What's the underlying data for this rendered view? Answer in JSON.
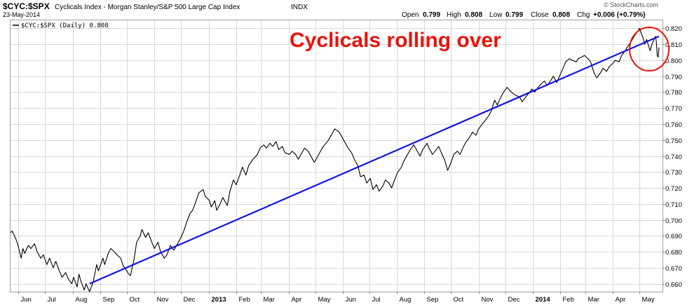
{
  "header": {
    "symbol": "$CYC:$SPX",
    "name": "Cyclicals Index - Morgan Stanley/S&P 500 Large Cap Index",
    "exchange": "INDX",
    "date": "23-May-2014",
    "open_label": "Open",
    "open": "0.799",
    "high_label": "High",
    "high": "0.808",
    "low_label": "Low",
    "low": "0.799",
    "close_label": "Close",
    "close": "0.808",
    "chg_label": "Chg",
    "chg": "+0.006 (+0.79%)"
  },
  "legend": {
    "label": "$CYC:$SPX (Daily) 0.808"
  },
  "annotation": "Cyclicals rolling over",
  "credit": "© StockCharts.com",
  "colors": {
    "price_line": "#000000",
    "trend_line": "#1414e6",
    "annotation": "#e8150c",
    "grid": "#d8d8d8"
  },
  "chart_data": {
    "type": "line",
    "title": "$CYC:$SPX",
    "xlabel": "",
    "ylabel": "",
    "ylim": [
      0.655,
      0.825
    ],
    "grid": true,
    "y_axis_side": "right",
    "yticks": [
      0.66,
      0.67,
      0.68,
      0.69,
      0.7,
      0.71,
      0.72,
      0.73,
      0.74,
      0.75,
      0.76,
      0.77,
      0.78,
      0.79,
      0.8,
      0.81,
      0.82
    ],
    "xticks": [
      {
        "label": "Jun",
        "date": "2012-06-01",
        "major": false
      },
      {
        "label": "Jul",
        "date": "2012-07-01",
        "major": false
      },
      {
        "label": "Aug",
        "date": "2012-08-01",
        "major": false
      },
      {
        "label": "Sep",
        "date": "2012-09-01",
        "major": false
      },
      {
        "label": "Oct",
        "date": "2012-10-01",
        "major": false
      },
      {
        "label": "Nov",
        "date": "2012-11-01",
        "major": false
      },
      {
        "label": "Dec",
        "date": "2012-12-01",
        "major": false
      },
      {
        "label": "2013",
        "date": "2013-01-01",
        "major": true
      },
      {
        "label": "Feb",
        "date": "2013-02-01",
        "major": false
      },
      {
        "label": "Mar",
        "date": "2013-03-01",
        "major": false
      },
      {
        "label": "Apr",
        "date": "2013-04-01",
        "major": false
      },
      {
        "label": "May",
        "date": "2013-05-01",
        "major": false
      },
      {
        "label": "Jun",
        "date": "2013-06-01",
        "major": false
      },
      {
        "label": "Jul",
        "date": "2013-07-01",
        "major": false
      },
      {
        "label": "Aug",
        "date": "2013-08-01",
        "major": false
      },
      {
        "label": "Sep",
        "date": "2013-09-01",
        "major": false
      },
      {
        "label": "Oct",
        "date": "2013-10-01",
        "major": false
      },
      {
        "label": "Nov",
        "date": "2013-11-01",
        "major": false
      },
      {
        "label": "Dec",
        "date": "2013-12-01",
        "major": false
      },
      {
        "label": "2014",
        "date": "2014-01-01",
        "major": true
      },
      {
        "label": "Feb",
        "date": "2014-02-01",
        "major": false
      },
      {
        "label": "Mar",
        "date": "2014-03-01",
        "major": false
      },
      {
        "label": "Apr",
        "date": "2014-04-01",
        "major": false
      },
      {
        "label": "May",
        "date": "2014-05-01",
        "major": false
      }
    ],
    "series": [
      {
        "name": "$CYC:$SPX (Daily)",
        "points": [
          [
            "2012-05-23",
            0.692
          ],
          [
            "2012-05-25",
            0.693
          ],
          [
            "2012-05-29",
            0.688
          ],
          [
            "2012-05-31",
            0.685
          ],
          [
            "2012-06-04",
            0.676
          ],
          [
            "2012-06-06",
            0.682
          ],
          [
            "2012-06-08",
            0.679
          ],
          [
            "2012-06-12",
            0.684
          ],
          [
            "2012-06-15",
            0.682
          ],
          [
            "2012-06-19",
            0.685
          ],
          [
            "2012-06-22",
            0.68
          ],
          [
            "2012-06-26",
            0.676
          ],
          [
            "2012-06-29",
            0.678
          ],
          [
            "2012-07-03",
            0.672
          ],
          [
            "2012-07-06",
            0.676
          ],
          [
            "2012-07-10",
            0.67
          ],
          [
            "2012-07-13",
            0.674
          ],
          [
            "2012-07-17",
            0.668
          ],
          [
            "2012-07-20",
            0.664
          ],
          [
            "2012-07-24",
            0.667
          ],
          [
            "2012-07-27",
            0.663
          ],
          [
            "2012-07-31",
            0.66
          ],
          [
            "2012-08-02",
            0.664
          ],
          [
            "2012-08-06",
            0.658
          ],
          [
            "2012-08-08",
            0.666
          ],
          [
            "2012-08-10",
            0.662
          ],
          [
            "2012-08-14",
            0.656
          ],
          [
            "2012-08-16",
            0.66
          ],
          [
            "2012-08-20",
            0.655
          ],
          [
            "2012-08-22",
            0.658
          ],
          [
            "2012-08-24",
            0.661
          ],
          [
            "2012-08-28",
            0.672
          ],
          [
            "2012-08-30",
            0.668
          ],
          [
            "2012-09-04",
            0.676
          ],
          [
            "2012-09-06",
            0.672
          ],
          [
            "2012-09-10",
            0.679
          ],
          [
            "2012-09-13",
            0.682
          ],
          [
            "2012-09-17",
            0.68
          ],
          [
            "2012-09-20",
            0.678
          ],
          [
            "2012-09-24",
            0.676
          ],
          [
            "2012-09-27",
            0.671
          ],
          [
            "2012-10-01",
            0.668
          ],
          [
            "2012-10-03",
            0.666
          ],
          [
            "2012-10-05",
            0.665
          ],
          [
            "2012-10-09",
            0.675
          ],
          [
            "2012-10-12",
            0.686
          ],
          [
            "2012-10-16",
            0.69
          ],
          [
            "2012-10-18",
            0.694
          ],
          [
            "2012-10-22",
            0.689
          ],
          [
            "2012-10-25",
            0.692
          ],
          [
            "2012-10-29",
            0.686
          ],
          [
            "2012-11-01",
            0.682
          ],
          [
            "2012-11-05",
            0.686
          ],
          [
            "2012-11-08",
            0.68
          ],
          [
            "2012-11-12",
            0.676
          ],
          [
            "2012-11-15",
            0.678
          ],
          [
            "2012-11-19",
            0.684
          ],
          [
            "2012-11-23",
            0.681
          ],
          [
            "2012-11-27",
            0.685
          ],
          [
            "2012-11-30",
            0.688
          ],
          [
            "2012-12-04",
            0.693
          ],
          [
            "2012-12-07",
            0.698
          ],
          [
            "2012-12-11",
            0.704
          ],
          [
            "2012-12-14",
            0.706
          ],
          [
            "2012-12-18",
            0.712
          ],
          [
            "2012-12-21",
            0.717
          ],
          [
            "2012-12-26",
            0.719
          ],
          [
            "2012-12-28",
            0.715
          ],
          [
            "2013-01-02",
            0.712
          ],
          [
            "2013-01-04",
            0.708
          ],
          [
            "2013-01-08",
            0.712
          ],
          [
            "2013-01-10",
            0.706
          ],
          [
            "2013-01-14",
            0.71
          ],
          [
            "2013-01-17",
            0.714
          ],
          [
            "2013-01-22",
            0.709
          ],
          [
            "2013-01-25",
            0.718
          ],
          [
            "2013-01-29",
            0.725
          ],
          [
            "2013-02-01",
            0.722
          ],
          [
            "2013-02-05",
            0.728
          ],
          [
            "2013-02-08",
            0.733
          ],
          [
            "2013-02-12",
            0.728
          ],
          [
            "2013-02-15",
            0.734
          ],
          [
            "2013-02-20",
            0.738
          ],
          [
            "2013-02-25",
            0.741
          ],
          [
            "2013-02-28",
            0.745
          ],
          [
            "2013-03-04",
            0.747
          ],
          [
            "2013-03-07",
            0.745
          ],
          [
            "2013-03-11",
            0.748
          ],
          [
            "2013-03-14",
            0.746
          ],
          [
            "2013-03-18",
            0.749
          ],
          [
            "2013-03-21",
            0.744
          ],
          [
            "2013-03-25",
            0.746
          ],
          [
            "2013-03-28",
            0.742
          ],
          [
            "2013-04-02",
            0.741
          ],
          [
            "2013-04-05",
            0.743
          ],
          [
            "2013-04-09",
            0.741
          ],
          [
            "2013-04-12",
            0.738
          ],
          [
            "2013-04-16",
            0.742
          ],
          [
            "2013-04-19",
            0.745
          ],
          [
            "2013-04-23",
            0.743
          ],
          [
            "2013-04-26",
            0.74
          ],
          [
            "2013-04-30",
            0.736
          ],
          [
            "2013-05-02",
            0.738
          ],
          [
            "2013-05-06",
            0.742
          ],
          [
            "2013-05-09",
            0.745
          ],
          [
            "2013-05-13",
            0.748
          ],
          [
            "2013-05-16",
            0.75
          ],
          [
            "2013-05-20",
            0.754
          ],
          [
            "2013-05-23",
            0.757
          ],
          [
            "2013-05-28",
            0.755
          ],
          [
            "2013-05-31",
            0.752
          ],
          [
            "2013-06-04",
            0.748
          ],
          [
            "2013-06-07",
            0.745
          ],
          [
            "2013-06-11",
            0.742
          ],
          [
            "2013-06-14",
            0.738
          ],
          [
            "2013-06-18",
            0.734
          ],
          [
            "2013-06-21",
            0.727
          ],
          [
            "2013-06-25",
            0.728
          ],
          [
            "2013-06-28",
            0.723
          ],
          [
            "2013-07-02",
            0.726
          ],
          [
            "2013-07-05",
            0.719
          ],
          [
            "2013-07-09",
            0.722
          ],
          [
            "2013-07-12",
            0.718
          ],
          [
            "2013-07-16",
            0.721
          ],
          [
            "2013-07-19",
            0.725
          ],
          [
            "2013-07-23",
            0.723
          ],
          [
            "2013-07-26",
            0.72
          ],
          [
            "2013-07-30",
            0.726
          ],
          [
            "2013-08-02",
            0.73
          ],
          [
            "2013-08-06",
            0.733
          ],
          [
            "2013-08-09",
            0.737
          ],
          [
            "2013-08-13",
            0.741
          ],
          [
            "2013-08-16",
            0.744
          ],
          [
            "2013-08-20",
            0.747
          ],
          [
            "2013-08-23",
            0.744
          ],
          [
            "2013-08-27",
            0.74
          ],
          [
            "2013-08-30",
            0.744
          ],
          [
            "2013-09-04",
            0.748
          ],
          [
            "2013-09-06",
            0.745
          ],
          [
            "2013-09-10",
            0.741
          ],
          [
            "2013-09-13",
            0.743
          ],
          [
            "2013-09-17",
            0.746
          ],
          [
            "2013-09-20",
            0.742
          ],
          [
            "2013-09-24",
            0.737
          ],
          [
            "2013-09-27",
            0.731
          ],
          [
            "2013-10-01",
            0.736
          ],
          [
            "2013-10-04",
            0.741
          ],
          [
            "2013-10-08",
            0.743
          ],
          [
            "2013-10-11",
            0.741
          ],
          [
            "2013-10-15",
            0.746
          ],
          [
            "2013-10-18",
            0.749
          ],
          [
            "2013-10-22",
            0.752
          ],
          [
            "2013-10-25",
            0.755
          ],
          [
            "2013-10-29",
            0.753
          ],
          [
            "2013-11-01",
            0.757
          ],
          [
            "2013-11-05",
            0.76
          ],
          [
            "2013-11-08",
            0.762
          ],
          [
            "2013-11-12",
            0.765
          ],
          [
            "2013-11-15",
            0.768
          ],
          [
            "2013-11-19",
            0.775
          ],
          [
            "2013-11-22",
            0.772
          ],
          [
            "2013-11-26",
            0.777
          ],
          [
            "2013-11-29",
            0.78
          ],
          [
            "2013-12-03",
            0.783
          ],
          [
            "2013-12-06",
            0.781
          ],
          [
            "2013-12-10",
            0.779
          ],
          [
            "2013-12-13",
            0.778
          ],
          [
            "2013-12-17",
            0.777
          ],
          [
            "2013-12-20",
            0.774
          ],
          [
            "2013-12-24",
            0.777
          ],
          [
            "2013-12-27",
            0.779
          ],
          [
            "2013-12-31",
            0.782
          ],
          [
            "2014-01-03",
            0.78
          ],
          [
            "2014-01-07",
            0.783
          ],
          [
            "2014-01-10",
            0.785
          ],
          [
            "2014-01-14",
            0.787
          ],
          [
            "2014-01-17",
            0.784
          ],
          [
            "2014-01-22",
            0.788
          ],
          [
            "2014-01-24",
            0.79
          ],
          [
            "2014-01-28",
            0.786
          ],
          [
            "2014-01-31",
            0.79
          ],
          [
            "2014-02-04",
            0.795
          ],
          [
            "2014-02-07",
            0.799
          ],
          [
            "2014-02-11",
            0.801
          ],
          [
            "2014-02-14",
            0.8
          ],
          [
            "2014-02-19",
            0.799
          ],
          [
            "2014-02-21",
            0.801
          ],
          [
            "2014-02-25",
            0.802
          ],
          [
            "2014-02-28",
            0.803
          ],
          [
            "2014-03-04",
            0.801
          ],
          [
            "2014-03-07",
            0.799
          ],
          [
            "2014-03-11",
            0.792
          ],
          [
            "2014-03-14",
            0.789
          ],
          [
            "2014-03-18",
            0.792
          ],
          [
            "2014-03-21",
            0.795
          ],
          [
            "2014-03-25",
            0.793
          ],
          [
            "2014-03-28",
            0.796
          ],
          [
            "2014-04-01",
            0.798
          ],
          [
            "2014-04-04",
            0.8
          ],
          [
            "2014-04-08",
            0.799
          ],
          [
            "2014-04-11",
            0.803
          ],
          [
            "2014-04-15",
            0.806
          ],
          [
            "2014-04-17",
            0.808
          ],
          [
            "2014-04-22",
            0.812
          ],
          [
            "2014-04-25",
            0.815
          ],
          [
            "2014-04-29",
            0.818
          ],
          [
            "2014-05-01",
            0.82
          ],
          [
            "2014-05-05",
            0.814
          ],
          [
            "2014-05-07",
            0.81
          ],
          [
            "2014-05-09",
            0.813
          ],
          [
            "2014-05-13",
            0.806
          ],
          [
            "2014-05-15",
            0.81
          ],
          [
            "2014-05-19",
            0.815
          ],
          [
            "2014-05-20",
            0.812
          ],
          [
            "2014-05-21",
            0.803
          ],
          [
            "2014-05-22",
            0.802
          ],
          [
            "2014-05-23",
            0.808
          ]
        ]
      }
    ],
    "trendline": {
      "color": "#1414e6",
      "start": [
        "2012-08-20",
        0.66
      ],
      "end": [
        "2014-05-23",
        0.815
      ]
    },
    "highlight_circle": {
      "color": "#e8150c",
      "center": [
        "2014-05-12",
        0.807
      ]
    }
  }
}
